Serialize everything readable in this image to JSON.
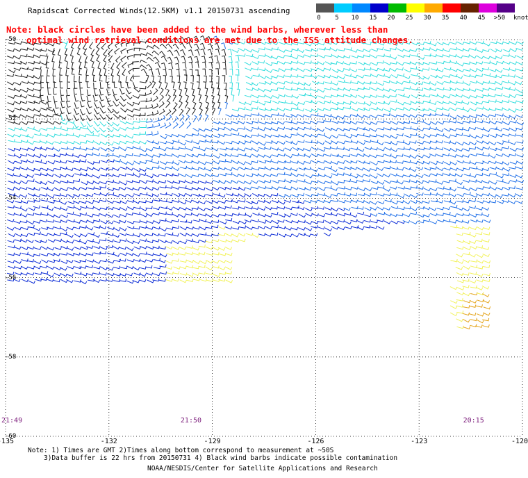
{
  "title": "Rapidscat Corrected Winds(12.5KM) v1.1 20150731 ascending",
  "note_line1": "Note: black circles have been added to the wind barbs, wherever less than",
  "note_line2": "optimal wind retrieval conditions are met due to the ISS attitude changes.",
  "legend": {
    "labels": [
      "0",
      "5",
      "10",
      "15",
      "20",
      "25",
      "30",
      "35",
      "40",
      "45",
      ">50"
    ],
    "unit": "knots",
    "colors": [
      "#555555",
      "#00ccff",
      "#0088ff",
      "#0000cc",
      "#00bb00",
      "#ffff00",
      "#ffaa00",
      "#ff0000",
      "#662200",
      "#dd00dd",
      "#550088"
    ]
  },
  "map": {
    "lon_labels": [
      "-135",
      "-132",
      "-129",
      "-126",
      "-123",
      "-120"
    ],
    "lat_labels": [
      "-50",
      "-52",
      "-54",
      "-56",
      "-58",
      "-60"
    ],
    "lon_range": [
      -135,
      -120
    ],
    "lat_range": [
      -50,
      -60
    ],
    "time_labels": [
      {
        "text": "21:49",
        "lon": -135
      },
      {
        "text": "21:50",
        "lon": -129.8
      },
      {
        "text": "20:15",
        "lon": -121.6
      }
    ]
  },
  "footer": {
    "line1": "Note: 1) Times are GMT 2)Times along bottom correspond to measurement at ~50S",
    "line2": "3)Data buffer is 22 hrs from 20150731 4) Black wind barbs indicate possible contamination",
    "line3": "NOAA/NESDIS/Center for Satellite Applications and Research"
  }
}
